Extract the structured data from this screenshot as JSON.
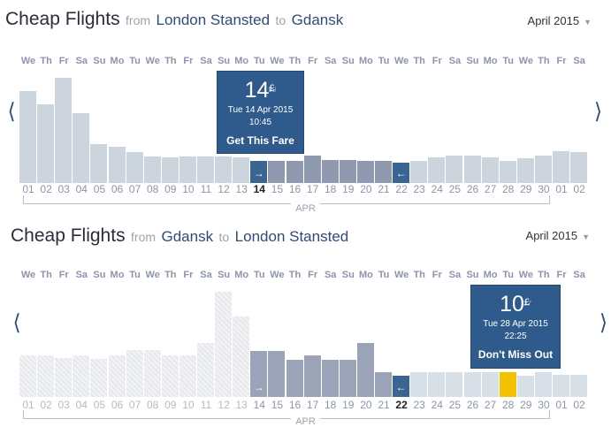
{
  "panel1": {
    "title": "Cheap Flights",
    "from_word": "from",
    "origin": "London Stansted",
    "to_word": "to",
    "destination": "Gdansk",
    "month_select": "April 2015",
    "month_label": "APR",
    "prev_icon": "chevron-left-icon",
    "next_icon": "chevron-right-icon",
    "tooltip": {
      "price_major": "14",
      "currency": "£",
      "price_minor": "99",
      "date": "Tue 14 Apr 2015",
      "time": "10:45",
      "cta": "Get This Fare"
    },
    "dates": [
      "01",
      "02",
      "03",
      "04",
      "05",
      "06",
      "07",
      "08",
      "09",
      "10",
      "11",
      "12",
      "13",
      "14",
      "15",
      "16",
      "17",
      "18",
      "19",
      "20",
      "21",
      "22",
      "23",
      "24",
      "25",
      "26",
      "27",
      "28",
      "29",
      "30",
      "01",
      "02"
    ],
    "weekdays": [
      "We",
      "Th",
      "Fr",
      "Sa",
      "Su",
      "Mo",
      "Tu",
      "We",
      "Th",
      "Fr",
      "Sa",
      "Su",
      "Mo",
      "Tu",
      "We",
      "Th",
      "Fr",
      "Sa",
      "Su",
      "Mo",
      "Tu",
      "We",
      "Th",
      "Fr",
      "Sa",
      "Su",
      "Mo",
      "Tu",
      "We",
      "Th",
      "Fr",
      "Sa"
    ],
    "bar_levels": [
      0.83,
      0.71,
      0.95,
      0.63,
      0.35,
      0.33,
      0.28,
      0.24,
      0.23,
      0.24,
      0.24,
      0.24,
      0.23,
      0.2,
      0.2,
      0.2,
      0.25,
      0.21,
      0.21,
      0.2,
      0.2,
      0.18,
      0.2,
      0.23,
      0.25,
      0.25,
      0.23,
      0.2,
      0.22,
      0.25,
      0.29,
      0.28
    ],
    "selected_out": "14",
    "selected_return": "22",
    "highlighted_range": [
      "15",
      "21"
    ],
    "colors": {
      "bar": "#ccd5de",
      "selected": "#3a6592",
      "range": "#8e98af"
    }
  },
  "panel2": {
    "title": "Cheap Flights",
    "from_word": "from",
    "origin": "Gdansk",
    "to_word": "to",
    "destination": "London Stansted",
    "month_select": "April 2015",
    "month_label": "APR",
    "prev_icon": "chevron-left-icon",
    "next_icon": "chevron-right-icon",
    "tooltip": {
      "price_major": "10",
      "currency": "£",
      "price_minor": "37",
      "date": "Tue 28 Apr 2015",
      "time": "22:25",
      "cta": "Don't Miss Out"
    },
    "dates": [
      "01",
      "02",
      "03",
      "04",
      "05",
      "06",
      "07",
      "08",
      "09",
      "10",
      "11",
      "12",
      "13",
      "14",
      "15",
      "16",
      "17",
      "18",
      "19",
      "20",
      "21",
      "22",
      "23",
      "24",
      "25",
      "26",
      "27",
      "28",
      "29",
      "30",
      "01",
      "02"
    ],
    "weekdays": [
      "We",
      "Th",
      "Fr",
      "Sa",
      "Su",
      "Mo",
      "Tu",
      "We",
      "Th",
      "Fr",
      "Sa",
      "Su",
      "Mo",
      "Tu",
      "We",
      "Th",
      "Fr",
      "Sa",
      "Su",
      "Mo",
      "Tu",
      "We",
      "Th",
      "Fr",
      "Sa",
      "Su",
      "Mo",
      "Tu",
      "We",
      "Th",
      "Fr",
      "Sa"
    ],
    "bar_levels": [
      0.37,
      0.37,
      0.35,
      0.37,
      0.34,
      0.37,
      0.42,
      0.42,
      0.37,
      0.37,
      0.48,
      0.94,
      0.72,
      0.41,
      0.41,
      0.33,
      0.37,
      0.33,
      0.33,
      0.48,
      0.22,
      0.19,
      0.22,
      0.22,
      0.22,
      0.22,
      0.22,
      0.22,
      0.19,
      0.22,
      0.2,
      0.2
    ],
    "outbound_marker": "14",
    "selected_return": "22",
    "selected_out": "28",
    "colors": {
      "bar": "#d7dfe7",
      "selected": "#3a6592",
      "range": "#9aa3b8",
      "gold": "#f5c200"
    }
  }
}
